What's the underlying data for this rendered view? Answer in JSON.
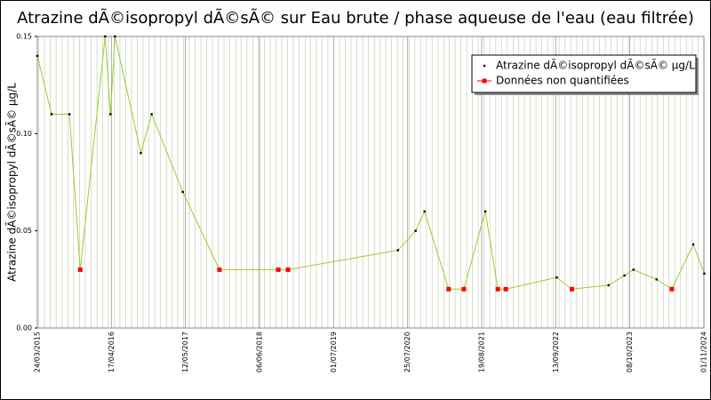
{
  "chart_data": {
    "type": "line",
    "title": "Atrazine dÃ©isopropyl dÃ©sÃ© sur Eau brute / phase aqueuse de l'eau (eau filtrée)",
    "y_label": "Atrazine dÃ©isopropyl dÃ©sÃ© µg/L",
    "x": [
      "24/03/2015",
      "07/06/2015",
      "09/09/2015",
      "05/11/2015",
      "15/03/2016",
      "12/04/2016",
      "06/05/2016",
      "19/09/2016",
      "15/11/2016",
      "28/04/2017",
      "07/11/2017",
      "13/09/2018",
      "03/11/2018",
      "04/06/2020",
      "05/09/2020",
      "22/10/2020",
      "26/02/2021",
      "17/05/2021",
      "07/09/2021",
      "12/11/2021",
      "24/12/2021",
      "18/09/2022",
      "07/12/2022",
      "18/06/2023",
      "10/09/2023",
      "27/10/2023",
      "26/02/2024",
      "16/05/2024",
      "06/09/2024",
      "03/11/2024"
    ],
    "series": [
      {
        "name": "Atrazine dÃ©isopropyl dÃ©sÃ© µg/L",
        "color": "#000000",
        "values": [
          0.14,
          0.11,
          0.11,
          null,
          0.15,
          0.11,
          0.15,
          0.09,
          0.11,
          0.07,
          null,
          null,
          null,
          0.04,
          0.05,
          0.06,
          null,
          null,
          0.06,
          null,
          null,
          0.026,
          null,
          0.022,
          0.027,
          0.03,
          0.025,
          null,
          0.043,
          0.028
        ]
      },
      {
        "name": "Données non quantifiées",
        "color": "#ff0000",
        "values": [
          null,
          null,
          null,
          0.03,
          null,
          null,
          null,
          null,
          null,
          null,
          0.03,
          0.03,
          0.03,
          null,
          null,
          null,
          0.02,
          0.02,
          null,
          0.02,
          0.02,
          null,
          0.02,
          null,
          null,
          null,
          null,
          0.02,
          null,
          null
        ]
      }
    ],
    "line_color": "#99cc33",
    "xlim": [
      "24/03/2015",
      "01/11/2024"
    ],
    "xticks": [
      "24/03/2015",
      "17/04/2016",
      "12/05/2017",
      "06/06/2018",
      "01/07/2019",
      "25/07/2020",
      "19/08/2021",
      "13/09/2022",
      "08/10/2023",
      "01/11/2024"
    ],
    "ylim": [
      0,
      0.15
    ],
    "yticks": [
      {
        "value": 0,
        "label": "0.00"
      },
      0.05,
      {
        "value": 0.1,
        "label": "0.10"
      },
      0.15
    ],
    "grid": true,
    "legend": "upper right"
  }
}
